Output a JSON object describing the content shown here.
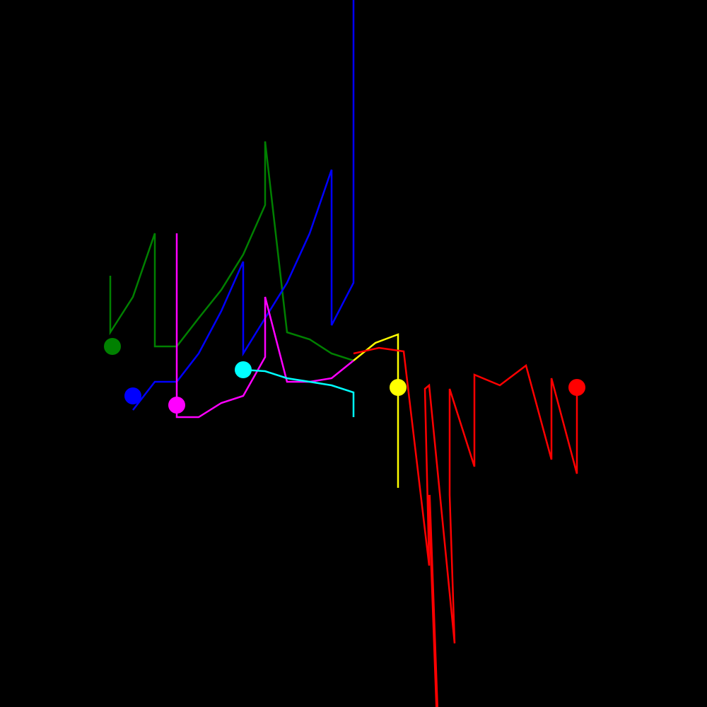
{
  "chart_data": {
    "type": "line",
    "title": "",
    "xlabel": "",
    "ylabel": "",
    "grid": false,
    "legend": "none",
    "background": "#000000",
    "xlim": [
      0,
      100
    ],
    "ylim": [
      0,
      100
    ],
    "series": [
      {
        "color": "#008000",
        "x": [
          15.6,
          15.6,
          18.8,
          21.9,
          21.9,
          25.0,
          28.1,
          31.3,
          34.4,
          37.5,
          37.5,
          40.6,
          43.8,
          46.9,
          50.0
        ],
        "y": [
          61.0,
          53.0,
          58.0,
          67.0,
          51.0,
          51.0,
          55.0,
          59.0,
          64.0,
          71.0,
          80.0,
          53.0,
          52.0,
          50.0,
          49.0
        ],
        "marker": {
          "x": 15.9,
          "y": 51.0
        }
      },
      {
        "color": "#0000ff",
        "x": [
          18.8,
          18.8,
          21.9,
          25.0,
          28.1,
          31.3,
          34.4,
          34.4,
          37.5,
          40.6,
          43.8,
          46.9,
          46.9,
          50.0,
          50.0
        ],
        "y": [
          42.0,
          42.0,
          46.0,
          46.0,
          50.0,
          56.0,
          63.0,
          50.0,
          55.0,
          60.0,
          67.0,
          76.0,
          54.0,
          60.0,
          100.0
        ],
        "marker": {
          "x": 18.8,
          "y": 44.0
        }
      },
      {
        "color": "#ff00ff",
        "x": [
          25.0,
          25.0,
          28.1,
          31.3,
          34.4,
          37.5,
          37.5,
          40.6,
          43.8,
          46.9,
          50.0
        ],
        "y": [
          67.0,
          41.0,
          41.0,
          43.0,
          44.0,
          49.5,
          58.0,
          46.0,
          46.0,
          46.5,
          49.0
        ],
        "marker": {
          "x": 25.0,
          "y": 42.7
        }
      },
      {
        "color": "#00ffff",
        "x": [
          34.4,
          37.5,
          40.6,
          43.8,
          46.9,
          50.0,
          50.0
        ],
        "y": [
          47.7,
          47.5,
          46.5,
          46.0,
          45.5,
          44.5,
          41.0
        ],
        "marker": {
          "x": 34.4,
          "y": 47.7
        }
      },
      {
        "color": "#ffff00",
        "x": [
          50.0,
          53.1,
          56.3,
          56.3
        ],
        "y": [
          49.0,
          51.5,
          52.7,
          31.0
        ],
        "marker": {
          "x": 56.3,
          "y": 45.2
        }
      },
      {
        "color": "#ff0000",
        "x": [
          50.0,
          53.6,
          57.1,
          60.7,
          60.1,
          60.7,
          64.3,
          63.6,
          63.6,
          67.1,
          67.1,
          70.7,
          74.4,
          78.0,
          78.0,
          81.6,
          81.6
        ],
        "y": [
          50.0,
          50.8,
          50.3,
          20.0,
          45.0,
          45.5,
          9.0,
          30.0,
          45.0,
          34.0,
          47.0,
          45.5,
          48.3,
          35.0,
          46.5,
          33.0,
          45.2
        ],
        "marker": {
          "x": 81.6,
          "y": 45.2
        }
      },
      {
        "color": "#ff0000",
        "x": [
          60.7,
          61.8
        ],
        "y": [
          30.0,
          0.0
        ],
        "thick": true
      }
    ]
  }
}
